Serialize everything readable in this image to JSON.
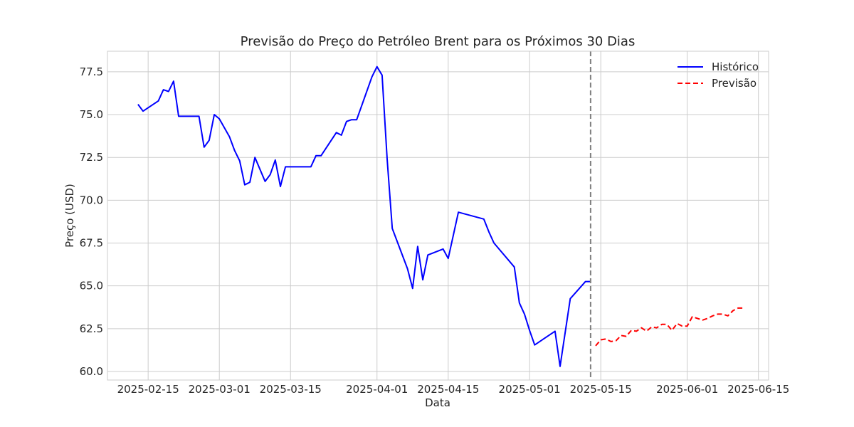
{
  "chart_data": {
    "type": "line",
    "title": "Previsão do Preço do Petróleo Brent para os Próximos 30 Dias",
    "xlabel": "Data",
    "ylabel": "Preço (USD)",
    "xlim": [
      "2025-02-07",
      "2025-06-17"
    ],
    "ylim": [
      59.5,
      78.7
    ],
    "x_ticks": [
      "2025-02-15",
      "2025-03-01",
      "2025-03-15",
      "2025-04-01",
      "2025-04-15",
      "2025-05-01",
      "2025-05-15",
      "2025-06-01",
      "2025-06-15"
    ],
    "y_ticks": [
      60.0,
      62.5,
      65.0,
      67.5,
      70.0,
      72.5,
      75.0,
      77.5
    ],
    "grid": true,
    "legend_position": "top-right",
    "forecast_start": "2025-05-13",
    "series": [
      {
        "name": "Histórico",
        "color": "#0000ff",
        "style": "solid",
        "x": [
          "2025-02-13",
          "2025-02-14",
          "2025-02-17",
          "2025-02-18",
          "2025-02-19",
          "2025-02-20",
          "2025-02-21",
          "2025-02-25",
          "2025-02-26",
          "2025-02-27",
          "2025-02-28",
          "2025-03-01",
          "2025-03-03",
          "2025-03-04",
          "2025-03-05",
          "2025-03-06",
          "2025-03-07",
          "2025-03-08",
          "2025-03-10",
          "2025-03-11",
          "2025-03-12",
          "2025-03-13",
          "2025-03-14",
          "2025-03-18",
          "2025-03-19",
          "2025-03-20",
          "2025-03-21",
          "2025-03-24",
          "2025-03-25",
          "2025-03-26",
          "2025-03-27",
          "2025-03-28",
          "2025-03-31",
          "2025-04-01",
          "2025-04-02",
          "2025-04-03",
          "2025-04-04",
          "2025-04-07",
          "2025-04-08",
          "2025-04-09",
          "2025-04-10",
          "2025-04-11",
          "2025-04-14",
          "2025-04-15",
          "2025-04-17",
          "2025-04-22",
          "2025-04-23",
          "2025-04-24",
          "2025-04-28",
          "2025-04-29",
          "2025-04-30",
          "2025-05-01",
          "2025-05-02",
          "2025-05-06",
          "2025-05-07",
          "2025-05-09",
          "2025-05-12",
          "2025-05-13"
        ],
        "values": [
          75.6,
          75.2,
          75.8,
          76.45,
          76.35,
          76.95,
          74.9,
          74.9,
          73.1,
          73.5,
          75.0,
          74.75,
          73.7,
          72.9,
          72.3,
          70.9,
          71.05,
          72.5,
          71.1,
          71.5,
          72.35,
          70.8,
          71.95,
          71.95,
          71.95,
          72.6,
          72.6,
          73.95,
          73.8,
          74.6,
          74.7,
          74.7,
          77.2,
          77.8,
          77.3,
          72.4,
          68.35,
          66.0,
          64.85,
          67.3,
          65.35,
          66.8,
          67.15,
          66.6,
          69.3,
          68.9,
          68.15,
          67.5,
          66.1,
          64.0,
          63.35,
          62.4,
          61.55,
          62.35,
          60.3,
          64.25,
          65.25,
          65.25
        ]
      },
      {
        "name": "Previsão",
        "color": "#ff0000",
        "style": "dashed",
        "x": [
          "2025-05-14",
          "2025-05-15",
          "2025-05-16",
          "2025-05-17",
          "2025-05-18",
          "2025-05-19",
          "2025-05-20",
          "2025-05-21",
          "2025-05-22",
          "2025-05-23",
          "2025-05-24",
          "2025-05-25",
          "2025-05-26",
          "2025-05-27",
          "2025-05-28",
          "2025-05-29",
          "2025-05-30",
          "2025-05-31",
          "2025-06-01",
          "2025-06-02",
          "2025-06-03",
          "2025-06-04",
          "2025-06-05",
          "2025-06-06",
          "2025-06-07",
          "2025-06-08",
          "2025-06-09",
          "2025-06-10",
          "2025-06-11",
          "2025-06-12"
        ],
        "values": [
          61.5,
          61.85,
          61.9,
          61.75,
          61.8,
          62.1,
          62.05,
          62.4,
          62.35,
          62.55,
          62.35,
          62.6,
          62.55,
          62.75,
          62.75,
          62.4,
          62.8,
          62.65,
          62.65,
          63.2,
          63.1,
          63.0,
          63.1,
          63.25,
          63.35,
          63.35,
          63.25,
          63.55,
          63.7,
          63.7
        ]
      }
    ]
  }
}
